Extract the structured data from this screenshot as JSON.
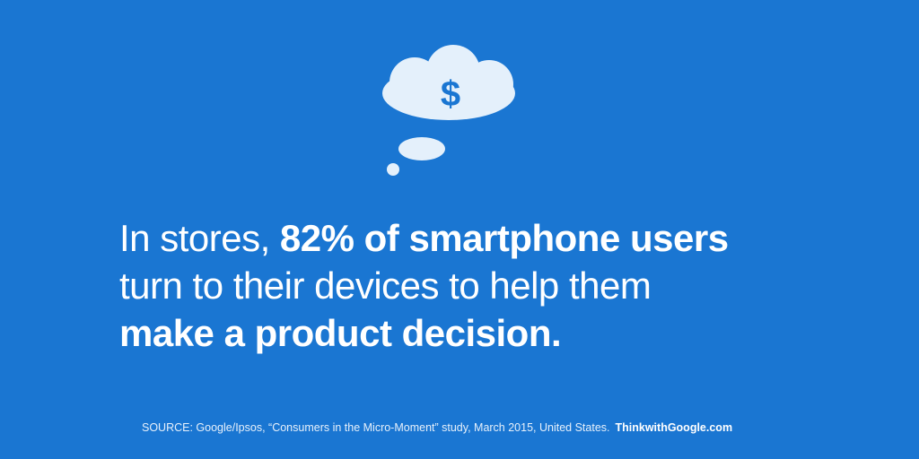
{
  "icon": {
    "symbol": "$"
  },
  "headline": {
    "lines": [
      [
        "In stores, ",
        "82% of smartphone users"
      ],
      [
        "turn to their devices to help them"
      ],
      [
        "make a product decision."
      ]
    ]
  },
  "footer": {
    "source": "SOURCE: Google/Ipsos, “Consumers in the Micro-Moment” study, March 2015, United States.",
    "brand": "ThinkwithGoogle.com"
  }
}
